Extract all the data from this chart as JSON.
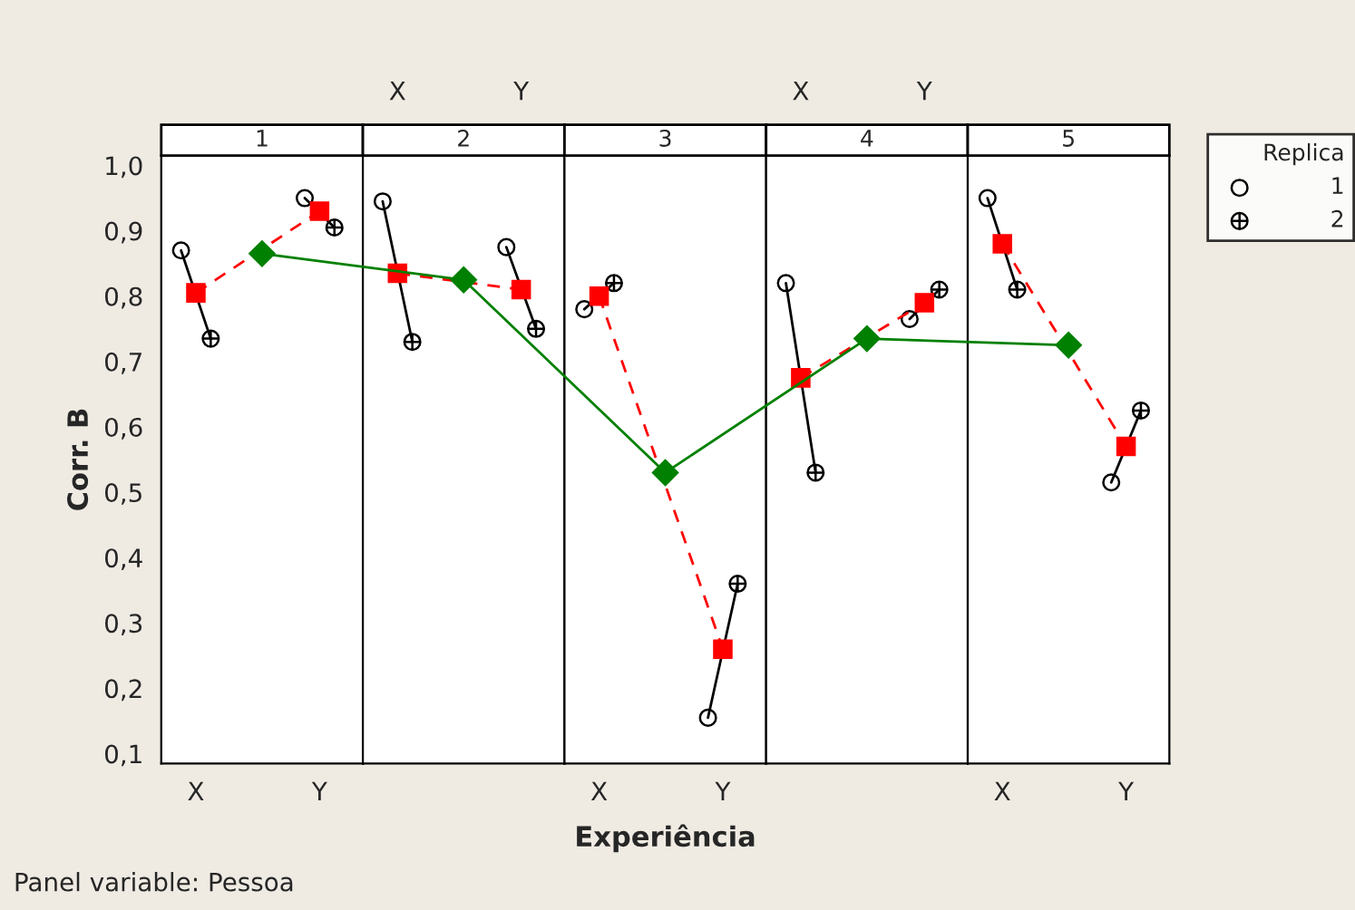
{
  "chart_data": [
    {
      "type": "scatter",
      "categories": [
        "X",
        "Y"
      ],
      "ylabel": "Corr. B",
      "legend": "right",
      "legend_title": "Replica",
      "ylim": [
        0.085,
        1.015
      ],
      "yticks": [
        {
          "value": 0.1,
          "label": "0,1"
        },
        {
          "value": 0.2,
          "label": "0,2"
        },
        {
          "value": 0.3,
          "label": "0,3"
        },
        {
          "value": 0.4,
          "label": "0,4"
        },
        {
          "value": 0.5,
          "label": "0,5"
        },
        {
          "value": 0.6,
          "label": "0,6"
        },
        {
          "value": 0.7,
          "label": "0,7"
        },
        {
          "value": 0.8,
          "label": "0,8"
        },
        {
          "value": 0.9,
          "label": "0,9"
        },
        {
          "value": 1.0,
          "label": "1,0"
        }
      ],
      "series": [
        {
          "name": "1",
          "color": "#000000",
          "marker": "circle",
          "values": [
            0.87,
            0.95
          ]
        },
        {
          "name": "2",
          "color": "#000000",
          "marker": "cross",
          "values": [
            0.735,
            0.905
          ]
        },
        {
          "type": "line",
          "color": "#ff0000",
          "marker": "square",
          "line_style": "dashed",
          "values": [
            0.805,
            0.93
          ]
        }
      ]
    },
    {
      "type": "scatter",
      "categories": [
        "X",
        "Y"
      ],
      "ylim": [
        0.085,
        1.015
      ],
      "tick_labels": "x",
      "series": [
        {
          "color": "#000000",
          "marker": "circle",
          "values": [
            0.945,
            0.875
          ]
        },
        {
          "color": "#000000",
          "marker": "cross",
          "values": [
            0.73,
            0.75
          ]
        },
        {
          "type": "line",
          "color": "#ff0000",
          "marker": "square",
          "line_style": "dashed",
          "values": [
            0.835,
            0.81
          ]
        }
      ]
    },
    {
      "type": "scatter",
      "categories": [
        "X",
        "Y"
      ],
      "ylim": [
        0.085,
        1.015
      ],
      "tick_labels": "x",
      "series": [
        {
          "color": "#000000",
          "marker": "circle",
          "values": [
            0.78,
            0.155
          ]
        },
        {
          "color": "#000000",
          "marker": "cross",
          "values": [
            0.82,
            0.36
          ]
        },
        {
          "type": "line",
          "color": "#ff0000",
          "marker": "square",
          "line_style": "dashed",
          "values": [
            0.8,
            0.26
          ]
        }
      ]
    },
    {
      "type": "scatter",
      "categories": [
        "X",
        "Y"
      ],
      "ylim": [
        0.085,
        1.015
      ],
      "tick_labels": "x",
      "series": [
        {
          "color": "#000000",
          "marker": "circle",
          "values": [
            0.82,
            0.765
          ]
        },
        {
          "color": "#000000",
          "marker": "cross",
          "values": [
            0.53,
            0.81
          ]
        },
        {
          "type": "line",
          "color": "#ff0000",
          "marker": "square",
          "line_style": "dashed",
          "values": [
            0.675,
            0.79
          ]
        }
      ]
    },
    {
      "type": "scatter",
      "categories": [
        "X",
        "Y"
      ],
      "ylim": [
        0.085,
        1.015
      ],
      "tick_labels": "x",
      "series": [
        {
          "color": "#000000",
          "marker": "circle",
          "values": [
            0.95,
            0.515
          ]
        },
        {
          "color": "#000000",
          "marker": "cross",
          "values": [
            0.81,
            0.625
          ]
        },
        {
          "type": "line",
          "color": "#ff0000",
          "marker": "square",
          "line_style": "dashed",
          "values": [
            0.88,
            0.57
          ]
        }
      ]
    },
    {
      "type": "line",
      "categories": [
        "1",
        "2",
        "3",
        "4",
        "5"
      ],
      "xlabel": "Experiência",
      "ylim": [
        0.085,
        1.015
      ],
      "tick_labels": false,
      "annotations": [
        "Panel variable: Pessoa"
      ],
      "series": [
        {
          "color": "#008000",
          "marker": "diamond",
          "values": [
            0.865,
            0.825,
            0.53,
            0.735,
            0.725
          ]
        }
      ]
    }
  ]
}
